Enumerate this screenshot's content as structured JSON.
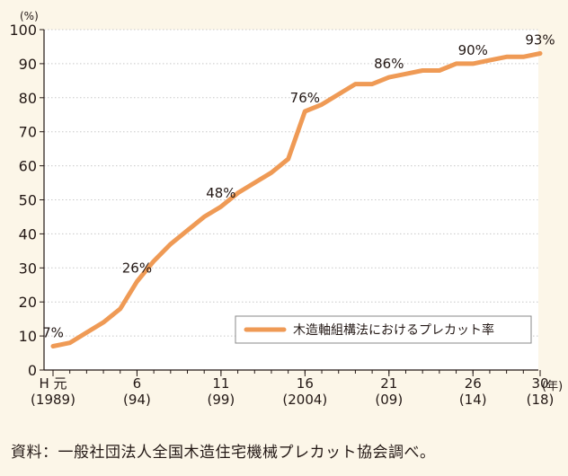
{
  "colors": {
    "background": "#fcf6e8",
    "plot_background": "#ffffff",
    "line": "#ef9a55",
    "grid": "#c8c8c8",
    "text": "#231815"
  },
  "chart_data": {
    "type": "line",
    "y_unit": "(%)",
    "x_unit": "(年)",
    "ylim": [
      0,
      100
    ],
    "yticks": [
      0,
      10,
      20,
      30,
      40,
      50,
      60,
      70,
      80,
      90,
      100
    ],
    "xlim": [
      1,
      30
    ],
    "grid": "horizontal dotted",
    "legend_position": "lower-right",
    "x_ticks": [
      {
        "x": 1,
        "label_top": "H 元",
        "label_bottom": "(1989)"
      },
      {
        "x": 6,
        "label_top": "6",
        "label_bottom": "(94)"
      },
      {
        "x": 11,
        "label_top": "11",
        "label_bottom": "(99)"
      },
      {
        "x": 16,
        "label_top": "16",
        "label_bottom": "(2004)"
      },
      {
        "x": 21,
        "label_top": "21",
        "label_bottom": "(09)"
      },
      {
        "x": 26,
        "label_top": "26",
        "label_bottom": "(14)"
      },
      {
        "x": 30,
        "label_top": "30",
        "label_bottom": "(18)"
      }
    ],
    "series": [
      {
        "name": "木造軸組構法におけるプレカット率",
        "x": [
          1,
          2,
          3,
          4,
          5,
          6,
          7,
          8,
          9,
          10,
          11,
          12,
          13,
          14,
          15,
          16,
          17,
          18,
          19,
          20,
          21,
          22,
          23,
          24,
          25,
          26,
          27,
          28,
          29,
          30
        ],
        "values": [
          7,
          8,
          11,
          14,
          18,
          26,
          32,
          37,
          41,
          45,
          48,
          52,
          55,
          58,
          62,
          76,
          78,
          81,
          84,
          84,
          86,
          87,
          88,
          88,
          90,
          90,
          91,
          92,
          92,
          93
        ]
      }
    ],
    "annotations": [
      {
        "x": 1,
        "y": 7,
        "text": "7%"
      },
      {
        "x": 6,
        "y": 26,
        "text": "26%"
      },
      {
        "x": 11,
        "y": 48,
        "text": "48%"
      },
      {
        "x": 16,
        "y": 76,
        "text": "76%"
      },
      {
        "x": 21,
        "y": 86,
        "text": "86%"
      },
      {
        "x": 26,
        "y": 90,
        "text": "90%"
      },
      {
        "x": 30,
        "y": 93,
        "text": "93%"
      }
    ]
  },
  "source_note": "資料：一般社団法人全国木造住宅機械プレカット協会調べ。"
}
